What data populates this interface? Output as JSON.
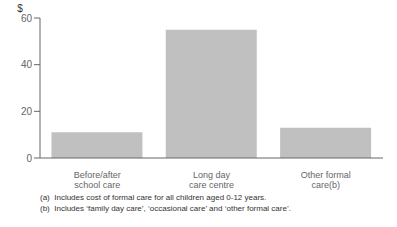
{
  "chart_data": {
    "type": "bar",
    "categories": [
      "Before/after school care",
      "Long day care centre",
      "Other formal care(b)"
    ],
    "values": [
      11,
      55,
      13
    ],
    "color": "#c0c0c0",
    "ylim": [
      0,
      60
    ],
    "yticks": [
      0,
      20,
      40,
      60
    ],
    "ylabel": "$",
    "annotations": [
      "(a)  Includes cost of formal care for all children aged 0-12 years.",
      "(b)  Includes ‘family day care’, ‘occasional care’ and ‘other formal care’."
    ],
    "grid": false
  }
}
